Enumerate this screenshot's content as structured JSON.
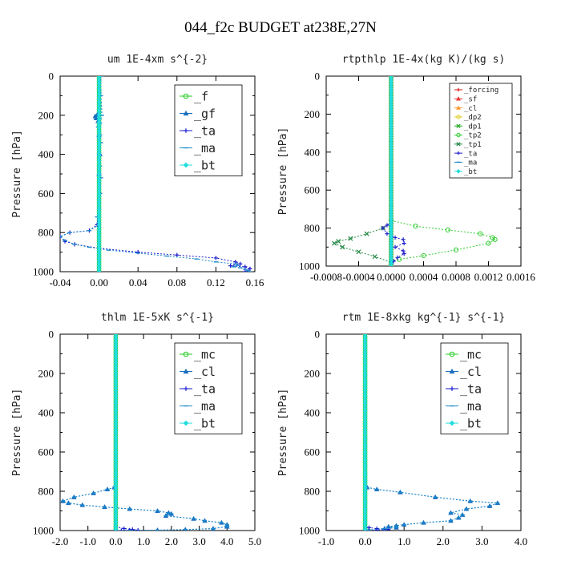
{
  "title": "044_f2c  BUDGET at238E,27N",
  "colors": {
    "f": "#22cc22",
    "gf": "#1a6fbf",
    "ta": "#1a1acc",
    "ma": "#1a8acc",
    "bt": "#22dddd",
    "mc": "#22cc22",
    "cl": "#1a6fbf",
    "forcing": "#dd2222",
    "sf": "#ee3333",
    "cl_rt": "#ff9933",
    "dp2": "#ddcc22",
    "dp1": "#22aa22",
    "tp2": "#33cc33",
    "tp1": "#228844",
    "ta_rt": "#2222cc",
    "ma_rt": "#1a8acc",
    "bt_rt": "#22dddd"
  },
  "chart_data": [
    {
      "type": "line",
      "title": "um   1E-4xm s^{-2}",
      "ylabel": "Pressure [hPa]",
      "xlim": [
        -0.04,
        0.16
      ],
      "ylim": [
        1000,
        0
      ],
      "xticks": [
        "-0.04",
        "0.00",
        "0.04",
        "0.08",
        "0.12",
        "0.16"
      ],
      "yticks": [
        "0",
        "200",
        "400",
        "600",
        "800",
        "1000"
      ],
      "legend_size": "large",
      "series": [
        {
          "name": "_f",
          "key": "f",
          "marker": "circle",
          "x": [
            0,
            0
          ],
          "y": [
            0,
            1000
          ]
        },
        {
          "name": "_gf",
          "key": "gf",
          "marker": "triangle",
          "x": [
            -0.001,
            -0.002,
            -0.004,
            -0.003,
            -0.001,
            0,
            0.001,
            0
          ],
          "y": [
            190,
            200,
            205,
            215,
            230,
            300,
            400,
            500
          ]
        },
        {
          "name": "_ta",
          "key": "ta",
          "marker": "plus",
          "x": [
            0,
            0,
            0.001,
            -0.002,
            -0.01,
            -0.03,
            -0.04,
            -0.035,
            -0.025,
            0,
            0.04,
            0.08,
            0.12,
            0.14,
            0.145,
            0.135,
            0.15,
            0.155,
            0.15
          ],
          "y": [
            0,
            300,
            600,
            760,
            790,
            800,
            820,
            845,
            860,
            880,
            900,
            915,
            930,
            950,
            960,
            970,
            975,
            985,
            1000
          ]
        },
        {
          "name": "_ma",
          "key": "ma",
          "marker": "dash",
          "x": [
            0.002,
            0.002,
            0.003,
            0.001,
            -0.001,
            0.001,
            0.002,
            0,
            0.001,
            0.002,
            0.001,
            0,
            -0.002,
            0,
            -0.01,
            -0.03,
            -0.04,
            -0.035,
            -0.025,
            -0.01,
            0.01,
            0.04,
            0.07,
            0.1,
            0.12,
            0.14,
            0.142,
            0.138,
            0.145,
            0.15,
            0.153,
            0.155
          ],
          "y": [
            0,
            100,
            200,
            240,
            260,
            300,
            340,
            400,
            460,
            520,
            600,
            680,
            720,
            760,
            790,
            800,
            820,
            840,
            860,
            875,
            890,
            905,
            920,
            935,
            950,
            960,
            968,
            975,
            980,
            988,
            995,
            1000
          ]
        },
        {
          "name": "_bt",
          "key": "bt",
          "marker": "diamond",
          "x": [
            0,
            0
          ],
          "y": [
            0,
            1000
          ]
        }
      ]
    },
    {
      "type": "line",
      "title": "rtpthlp   1E-4x(kg K)/(kg s)",
      "ylabel": "Pressure [hPa]",
      "xlim": [
        -0.0008,
        0.0016
      ],
      "ylim": [
        1000,
        0
      ],
      "xticks": [
        "-0.0008",
        "-0.0004",
        "0.0000",
        "0.0004",
        "0.0008",
        "0.0012",
        "0.0016"
      ],
      "yticks": [
        "0",
        "200",
        "400",
        "600",
        "800",
        "1000"
      ],
      "legend_size": "small",
      "series": [
        {
          "name": "_forcing",
          "key": "forcing",
          "marker": "plus",
          "x": [
            0,
            0
          ],
          "y": [
            0,
            1000
          ]
        },
        {
          "name": "_sf",
          "key": "sf",
          "marker": "triangle",
          "x": [
            0,
            0
          ],
          "y": [
            0,
            1000
          ]
        },
        {
          "name": "_cl",
          "key": "cl_rt",
          "marker": "triangle",
          "x": [
            0,
            0
          ],
          "y": [
            0,
            1000
          ]
        },
        {
          "name": "_dp2",
          "key": "dp2",
          "marker": "circle",
          "x": [
            0,
            0
          ],
          "y": [
            0,
            1000
          ]
        },
        {
          "name": "_dp1",
          "key": "dp1",
          "marker": "cross",
          "x": [
            0,
            0
          ],
          "y": [
            0,
            1000
          ]
        },
        {
          "name": "_tp2",
          "key": "tp2",
          "marker": "circle",
          "x": [
            0,
            0.0003,
            0.0007,
            0.0011,
            0.00125,
            0.00128,
            0.0012,
            0.0008,
            0.0004,
            0.0001,
            0
          ],
          "y": [
            760,
            790,
            810,
            830,
            850,
            860,
            880,
            915,
            945,
            965,
            980
          ]
        },
        {
          "name": "_tp1",
          "key": "tp1",
          "marker": "cross",
          "x": [
            0,
            -0.0001,
            -0.0003,
            -0.0005,
            -0.00065,
            -0.0007,
            -0.0006,
            -0.0004,
            -0.0002,
            0
          ],
          "y": [
            770,
            800,
            830,
            855,
            870,
            880,
            900,
            925,
            950,
            980
          ]
        },
        {
          "name": "_ta",
          "key": "ta_rt",
          "marker": "plus",
          "x": [
            0,
            -5e-05,
            -0.0001,
            -5e-05,
            5e-05,
            0.00015,
            0.00016,
            5e-05,
            0.00015,
            0.00016,
            8e-05,
            3e-05,
            0
          ],
          "y": [
            770,
            785,
            800,
            830,
            850,
            860,
            880,
            900,
            920,
            935,
            955,
            975,
            1000
          ]
        },
        {
          "name": "_ma",
          "key": "ma_rt",
          "marker": "dash",
          "x": [
            0,
            0
          ],
          "y": [
            0,
            1000
          ]
        },
        {
          "name": "_bt",
          "key": "bt_rt",
          "marker": "diamond",
          "x": [
            0,
            0
          ],
          "y": [
            0,
            1000
          ]
        }
      ]
    },
    {
      "type": "line",
      "title": "thlm   1E-5xK s^{-1}",
      "ylabel": "Pressure [hPa]",
      "xlim": [
        -2.0,
        5.0
      ],
      "ylim": [
        1000,
        0
      ],
      "xticks": [
        "-2.0",
        "-1.0",
        "0.0",
        "1.0",
        "2.0",
        "3.0",
        "4.0",
        "5.0"
      ],
      "yticks": [
        "0",
        "200",
        "400",
        "600",
        "800",
        "1000"
      ],
      "legend_size": "large",
      "series": [
        {
          "name": "_mc",
          "key": "mc",
          "marker": "circle",
          "x": [
            0,
            0
          ],
          "y": [
            0,
            1000
          ]
        },
        {
          "name": "_cl",
          "key": "cl",
          "marker": "triangle",
          "x": [
            -0.05,
            -0.3,
            -0.8,
            -1.5,
            -1.9,
            -1.7,
            -1.2,
            -0.4,
            0.5,
            1.5,
            1.9,
            2.0,
            1.8,
            2.8,
            3.2,
            3.8,
            4.0,
            4.0,
            3.5,
            2.5,
            1.5,
            0.5,
            0
          ],
          "y": [
            780,
            790,
            810,
            830,
            850,
            860,
            870,
            880,
            890,
            900,
            910,
            915,
            925,
            940,
            950,
            960,
            970,
            980,
            990,
            995,
            998,
            999,
            1000
          ]
        },
        {
          "name": "_ta",
          "key": "ta",
          "marker": "plus",
          "x": [
            0,
            0,
            0.3,
            0.6,
            0.8,
            0.5,
            0.2,
            0
          ],
          "y": [
            0,
            980,
            990,
            995,
            998,
            999,
            1000,
            1000
          ]
        },
        {
          "name": "_ma",
          "key": "ma",
          "marker": "dash",
          "x": [
            -0.05,
            -0.3,
            -0.8,
            -1.5,
            -1.9,
            -1.7,
            -1.2,
            -0.4,
            0.5,
            1.5,
            1.9,
            2.0,
            1.8,
            2.8,
            3.2,
            3.8,
            4.0,
            4.0,
            3.5,
            2.5,
            1.5,
            0.5,
            0
          ],
          "y": [
            780,
            790,
            810,
            830,
            850,
            860,
            870,
            880,
            890,
            900,
            910,
            915,
            925,
            940,
            950,
            960,
            970,
            980,
            990,
            995,
            998,
            999,
            1000
          ]
        },
        {
          "name": "_bt",
          "key": "bt",
          "marker": "diamond",
          "x": [
            0,
            0
          ],
          "y": [
            0,
            1000
          ]
        }
      ]
    },
    {
      "type": "line",
      "title": "rtm   1E-8xkg kg^{-1} s^{-1}",
      "ylabel": "Pressure [hPa]",
      "xlim": [
        -1.0,
        4.0
      ],
      "ylim": [
        1000,
        0
      ],
      "xticks": [
        "-1.0",
        "0.0",
        "1.0",
        "2.0",
        "3.0",
        "4.0"
      ],
      "yticks": [
        "0",
        "200",
        "400",
        "600",
        "800",
        "1000"
      ],
      "legend_size": "large",
      "series": [
        {
          "name": "_mc",
          "key": "mc",
          "marker": "circle",
          "x": [
            0,
            0
          ],
          "y": [
            0,
            1000
          ]
        },
        {
          "name": "_cl",
          "key": "cl",
          "marker": "triangle",
          "x": [
            0.05,
            0.3,
            0.9,
            1.8,
            2.7,
            3.4,
            3.2,
            2.6,
            2.2,
            2.5,
            2.4,
            2.2,
            1.5,
            1.0,
            0.8,
            0.6,
            0.8,
            0.5,
            0.1,
            0
          ],
          "y": [
            780,
            790,
            805,
            830,
            850,
            860,
            875,
            890,
            910,
            920,
            935,
            950,
            960,
            970,
            975,
            980,
            985,
            990,
            997,
            1000
          ]
        },
        {
          "name": "_ta",
          "key": "ta",
          "marker": "plus",
          "x": [
            0,
            0,
            0.1,
            0.3,
            0.6,
            0.3,
            0
          ],
          "y": [
            0,
            980,
            985,
            990,
            995,
            998,
            1000
          ]
        },
        {
          "name": "_ma",
          "key": "ma",
          "marker": "dash",
          "x": [
            0.05,
            0.3,
            0.9,
            1.8,
            2.7,
            3.4,
            3.2,
            2.6,
            2.2,
            2.5,
            2.4,
            2.2,
            1.5,
            1.0,
            0.8,
            0.6,
            0.8,
            0.5,
            0.1,
            0
          ],
          "y": [
            780,
            790,
            805,
            830,
            850,
            860,
            875,
            890,
            910,
            920,
            935,
            950,
            960,
            970,
            975,
            980,
            985,
            990,
            997,
            1000
          ]
        },
        {
          "name": "_bt",
          "key": "bt",
          "marker": "diamond",
          "x": [
            0,
            0
          ],
          "y": [
            0,
            1000
          ]
        }
      ]
    }
  ]
}
